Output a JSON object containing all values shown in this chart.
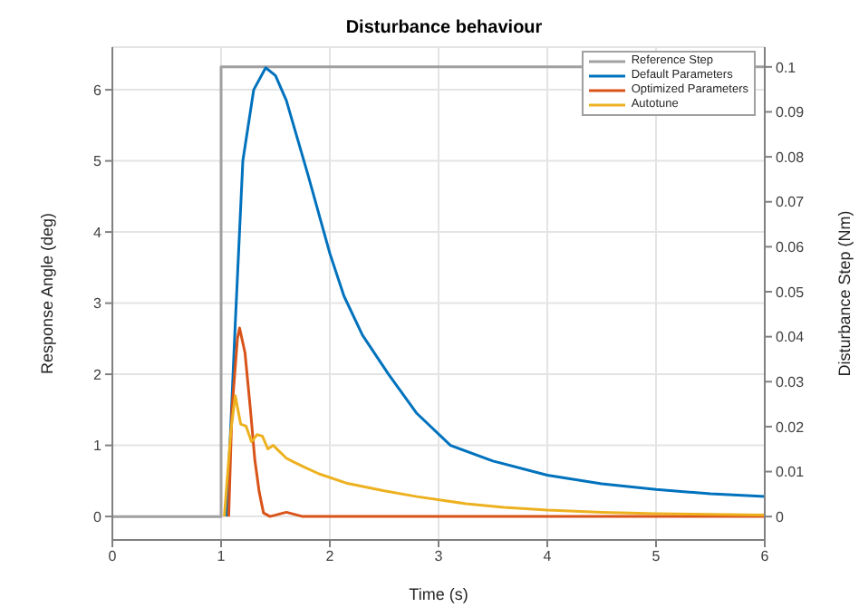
{
  "chart_data": {
    "type": "line",
    "title": "Disturbance behaviour",
    "xlabel": "Time (s)",
    "ylabel": "Response Angle (deg)",
    "y2label": "Disturbance Step (Nm)",
    "xlim": [
      0,
      6
    ],
    "xticks": [
      0,
      1,
      2,
      3,
      4,
      5,
      6
    ],
    "ylim": [
      -0.33,
      6.6
    ],
    "yticks": [
      0,
      1,
      2,
      3,
      4,
      5,
      6
    ],
    "y2lim": [
      -0.0052,
      0.1044
    ],
    "y2ticks": [
      0,
      0.01,
      0.02,
      0.03,
      0.04,
      0.05,
      0.06,
      0.07,
      0.08,
      0.09,
      0.1
    ],
    "grid": true,
    "legend": "top right",
    "marker": "none",
    "line_style": "solid",
    "series": [
      {
        "name": "Reference Step",
        "color": "#a0a0a0",
        "axis": "y2",
        "x": [
          0,
          1,
          1,
          6
        ],
        "values": [
          0,
          0,
          0.1,
          0.1
        ]
      },
      {
        "name": "Default Parameters",
        "color": "#0072bd",
        "x": [
          1.05,
          1.09,
          1.13,
          1.2,
          1.3,
          1.41,
          1.5,
          1.6,
          1.8,
          2.0,
          2.13,
          2.3,
          2.54,
          2.8,
          3.11,
          3.5,
          4.0,
          4.5,
          5.0,
          5.5,
          6.0
        ],
        "values": [
          0,
          1.3,
          2.7,
          5.0,
          6.0,
          6.31,
          6.2,
          5.85,
          4.8,
          3.7,
          3.1,
          2.55,
          2.0,
          1.45,
          1.0,
          0.78,
          0.58,
          0.46,
          0.38,
          0.32,
          0.28
        ]
      },
      {
        "name": "Optimized Parameters",
        "color": "#d95319",
        "x": [
          1.07,
          1.1,
          1.15,
          1.17,
          1.22,
          1.27,
          1.31,
          1.35,
          1.39,
          1.45,
          1.6,
          1.75,
          2.0,
          6.0
        ],
        "values": [
          0,
          1.5,
          2.5,
          2.65,
          2.3,
          1.5,
          0.8,
          0.35,
          0.05,
          0.0,
          0.06,
          0,
          0,
          0
        ]
      },
      {
        "name": "Autotune",
        "color": "#edb120",
        "x": [
          1.03,
          1.09,
          1.13,
          1.18,
          1.23,
          1.28,
          1.33,
          1.38,
          1.43,
          1.48,
          1.52,
          1.6,
          1.65,
          1.77,
          1.9,
          2.15,
          2.5,
          2.8,
          3.25,
          3.6,
          4.0,
          4.5,
          5.0,
          5.5,
          6.0
        ],
        "values": [
          0,
          1.2,
          1.7,
          1.3,
          1.27,
          1.05,
          1.15,
          1.13,
          0.95,
          1.0,
          0.94,
          0.82,
          0.78,
          0.69,
          0.6,
          0.47,
          0.36,
          0.28,
          0.18,
          0.13,
          0.09,
          0.06,
          0.04,
          0.03,
          0.02
        ]
      }
    ]
  }
}
